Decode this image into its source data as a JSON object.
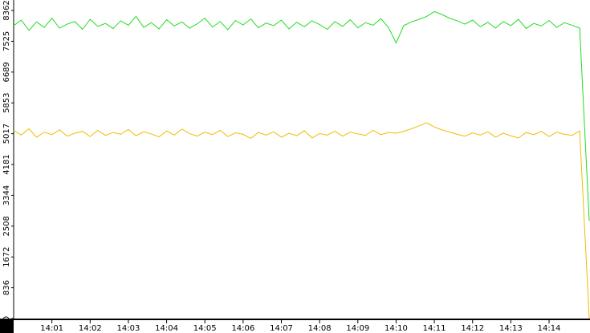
{
  "chart_data": {
    "type": "line",
    "x": [
      0,
      0.2,
      0.4,
      0.6,
      0.8,
      1,
      1.2,
      1.4,
      1.6,
      1.8,
      2,
      2.2,
      2.4,
      2.6,
      2.8,
      3,
      3.2,
      3.4,
      3.6,
      3.8,
      4,
      4.2,
      4.4,
      4.6,
      4.8,
      5,
      5.2,
      5.4,
      5.6,
      5.8,
      6,
      6.2,
      6.4,
      6.6,
      6.8,
      7,
      7.2,
      7.4,
      7.6,
      7.8,
      8,
      8.2,
      8.4,
      8.6,
      8.8,
      9,
      9.2,
      9.4,
      9.6,
      9.8,
      10,
      10.2,
      10.4,
      10.6,
      10.8,
      11,
      11.2,
      11.4,
      11.6,
      11.8,
      12,
      12.2,
      12.4,
      12.6,
      12.8,
      13,
      13.2,
      13.4,
      13.6,
      13.8,
      14,
      14.2,
      14.4,
      14.6,
      14.8,
      15.05
    ],
    "series": [
      {
        "color": "#22dd22",
        "values": [
          7950,
          8100,
          7820,
          8050,
          7900,
          8150,
          7880,
          7990,
          8060,
          7850,
          8120,
          7930,
          8010,
          7870,
          8080,
          7960,
          8200,
          7900,
          8030,
          7860,
          8110,
          7940,
          8050,
          7880,
          8000,
          8150,
          7910,
          8060,
          7840,
          8090,
          7970,
          8130,
          7890,
          8020,
          7950,
          8100,
          7860,
          8040,
          7920,
          8080,
          7980,
          7850,
          8060,
          7930,
          8110,
          7890,
          8030,
          7960,
          8140,
          7900,
          7480,
          7950,
          8050,
          8120,
          8200,
          8330,
          8250,
          8150,
          8080,
          7990,
          8100,
          7920,
          8040,
          7880,
          8060,
          7950,
          8120,
          7870,
          8010,
          7940,
          8090,
          7900,
          8030,
          7960,
          7880,
          2650
        ]
      },
      {
        "color": "#f0bb00",
        "values": [
          5100,
          4980,
          5150,
          4920,
          5060,
          4990,
          5120,
          4950,
          5030,
          5080,
          4940,
          5110,
          4970,
          5050,
          5000,
          5130,
          4960,
          5070,
          5010,
          4930,
          5090,
          4980,
          5140,
          5020,
          4950,
          5060,
          4990,
          5110,
          4940,
          5040,
          5000,
          4890,
          5050,
          4980,
          5070,
          4920,
          5030,
          4960,
          5100,
          4900,
          5020,
          4980,
          5080,
          4950,
          5060,
          5010,
          4970,
          5110,
          4990,
          5050,
          5030,
          5080,
          5150,
          5230,
          5310,
          5200,
          5120,
          5060,
          5000,
          4950,
          5040,
          4980,
          5070,
          4920,
          5030,
          4960,
          4900,
          5050,
          4990,
          5080,
          4940,
          5060,
          5000,
          4970,
          5090,
          0
        ]
      }
    ],
    "xlim": [
      0,
      15.07
    ],
    "xticks": [
      {
        "value": 1,
        "label": "14:01"
      },
      {
        "value": 2,
        "label": "14:02"
      },
      {
        "value": 3,
        "label": "14:03"
      },
      {
        "value": 4,
        "label": "14:04"
      },
      {
        "value": 5,
        "label": "14:05"
      },
      {
        "value": 6,
        "label": "14:06"
      },
      {
        "value": 7,
        "label": "14:07"
      },
      {
        "value": 8,
        "label": "14:08"
      },
      {
        "value": 9,
        "label": "14:09"
      },
      {
        "value": 10,
        "label": "14:10"
      },
      {
        "value": 11,
        "label": "14:11"
      },
      {
        "value": 12,
        "label": "14:12"
      },
      {
        "value": 13,
        "label": "14:13"
      },
      {
        "value": 14,
        "label": "14:14"
      }
    ],
    "ylim": [
      0,
      8645
    ],
    "yticks": [
      0,
      836,
      1672,
      2508,
      3344,
      4181,
      5017,
      5853,
      6689,
      7525,
      8362
    ]
  }
}
